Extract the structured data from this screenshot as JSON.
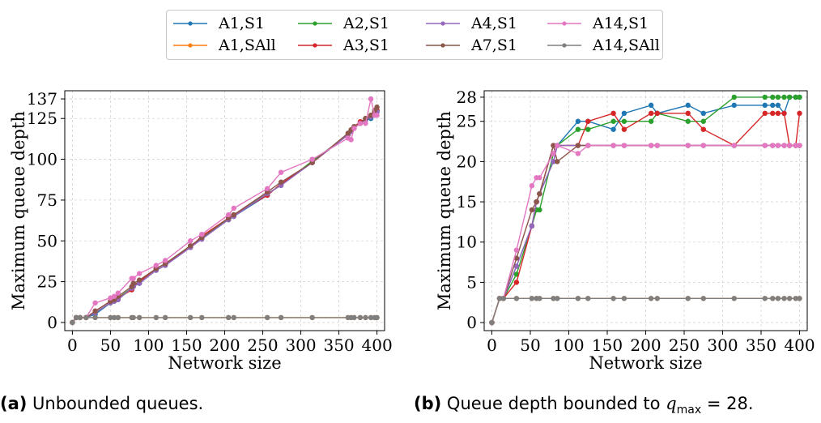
{
  "legend": [
    {
      "name": "A1,S1",
      "color": "#1f77b4"
    },
    {
      "name": "A2,S1",
      "color": "#2ca02c"
    },
    {
      "name": "A4,S1",
      "color": "#9467bd"
    },
    {
      "name": "A14,S1",
      "color": "#e377c2"
    },
    {
      "name": "A1,SAll",
      "color": "#ff7f0e"
    },
    {
      "name": "A3,S1",
      "color": "#d62728"
    },
    {
      "name": "A7,S1",
      "color": "#8c564b"
    },
    {
      "name": "A14,SAll",
      "color": "#7f7f7f"
    }
  ],
  "captions": {
    "a_label": "(a)",
    "a_text": " Unbounded queues.",
    "b_label": "(b)",
    "b_text": " Queue depth bounded to ",
    "b_math": "q",
    "b_sub": "max",
    "b_eq": " = 28."
  },
  "chart_data": [
    {
      "type": "line",
      "title": "",
      "xlabel": "Network size",
      "ylabel": "Maximum queue depth",
      "xlim": [
        -10,
        410
      ],
      "ylim": [
        -5,
        142
      ],
      "xticks": [
        0,
        50,
        100,
        150,
        200,
        250,
        300,
        350,
        400
      ],
      "yticks": [
        0,
        25,
        50,
        75,
        100,
        125,
        137
      ],
      "grid": true,
      "legend_position": "top-center",
      "x": [
        0,
        5,
        10,
        18,
        30,
        50,
        55,
        60,
        78,
        80,
        88,
        110,
        122,
        155,
        170,
        205,
        212,
        256,
        274,
        315,
        362,
        366,
        370,
        378,
        385,
        392,
        397,
        400
      ],
      "series": [
        {
          "name": "A1,S1",
          "color": "#1f77b4",
          "values": [
            0,
            3,
            3,
            3,
            5,
            12,
            13,
            14,
            21,
            22,
            24,
            32,
            35,
            46,
            52,
            63,
            65,
            78,
            85,
            98,
            115,
            117,
            119,
            122,
            124,
            125,
            127,
            129
          ]
        },
        {
          "name": "A2,S1",
          "color": "#2ca02c",
          "values": [
            0,
            3,
            3,
            3,
            6,
            12,
            14,
            15,
            21,
            23,
            25,
            33,
            36,
            47,
            52,
            63,
            66,
            79,
            84,
            99,
            115,
            118,
            120,
            122,
            125,
            126,
            128,
            130
          ]
        },
        {
          "name": "A3,S1",
          "color": "#d62728",
          "values": [
            0,
            3,
            3,
            3,
            7,
            13,
            14,
            15,
            20,
            22,
            25,
            33,
            36,
            46,
            53,
            64,
            66,
            78,
            85,
            98,
            115,
            118,
            120,
            123,
            125,
            127,
            129,
            130
          ]
        },
        {
          "name": "A4,S1",
          "color": "#9467bd",
          "values": [
            0,
            3,
            3,
            3,
            6,
            12,
            13,
            14,
            21,
            22,
            24,
            32,
            35,
            46,
            51,
            63,
            65,
            79,
            84,
            98,
            115,
            117,
            119,
            122,
            124,
            126,
            128,
            129
          ]
        },
        {
          "name": "A7,S1",
          "color": "#8c564b",
          "values": [
            0,
            3,
            3,
            3,
            7,
            13,
            14,
            16,
            22,
            24,
            26,
            33,
            36,
            47,
            52,
            64,
            66,
            80,
            86,
            98,
            116,
            118,
            120,
            122,
            125,
            127,
            130,
            132
          ]
        },
        {
          "name": "A14,S1",
          "color": "#e377c2",
          "values": [
            0,
            3,
            3,
            3,
            12,
            15,
            16,
            18,
            27,
            27,
            30,
            35,
            38,
            50,
            54,
            66,
            70,
            82,
            92,
            100,
            113,
            112,
            119,
            122,
            122,
            137,
            127,
            127
          ]
        },
        {
          "name": "A1,SAll",
          "color": "#ff7f0e",
          "values": [
            0,
            3,
            3,
            3,
            3,
            3,
            3,
            3,
            3,
            3,
            3,
            3,
            3,
            3,
            3,
            3,
            3,
            3,
            3,
            3,
            3,
            3,
            3,
            3,
            3,
            3,
            3,
            3
          ]
        },
        {
          "name": "A14,SAll",
          "color": "#7f7f7f",
          "values": [
            0,
            3,
            3,
            3,
            3,
            3,
            3,
            3,
            3,
            3,
            3,
            3,
            3,
            3,
            3,
            3,
            3,
            3,
            3,
            3,
            3,
            3,
            3,
            3,
            3,
            3,
            3,
            3
          ]
        }
      ]
    },
    {
      "type": "line",
      "title": "",
      "xlabel": "Network size",
      "ylabel": "Maximum queue depth",
      "xlim": [
        -10,
        410
      ],
      "ylim": [
        -1,
        28.8
      ],
      "xticks": [
        0,
        50,
        100,
        150,
        200,
        250,
        300,
        350,
        400
      ],
      "yticks": [
        0,
        5,
        10,
        15,
        20,
        25,
        28
      ],
      "grid": true,
      "legend_position": "top-center",
      "x": [
        0,
        10,
        15,
        32,
        52,
        58,
        62,
        80,
        85,
        112,
        125,
        158,
        172,
        207,
        215,
        255,
        275,
        315,
        355,
        365,
        372,
        380,
        387,
        395,
        400
      ],
      "series": [
        {
          "name": "A1,S1",
          "color": "#1f77b4",
          "values": [
            0,
            3,
            3,
            7,
            12,
            15,
            16,
            20,
            22,
            25,
            25,
            24,
            26,
            27,
            26,
            27,
            26,
            27,
            27,
            27,
            27,
            26,
            28,
            28,
            28
          ]
        },
        {
          "name": "A2,S1",
          "color": "#2ca02c",
          "values": [
            0,
            3,
            3,
            6,
            12,
            14,
            14,
            21,
            22,
            24,
            24,
            25,
            25,
            25,
            26,
            25,
            25,
            28,
            28,
            28,
            28,
            28,
            28,
            28,
            28
          ]
        },
        {
          "name": "A3,S1",
          "color": "#d62728",
          "values": [
            0,
            3,
            3,
            5,
            12,
            15,
            16,
            22,
            22,
            22,
            25,
            26,
            24,
            26,
            26,
            26,
            24,
            22,
            26,
            26,
            26,
            26,
            22,
            22,
            26
          ]
        },
        {
          "name": "A4,S1",
          "color": "#9467bd",
          "values": [
            0,
            3,
            3,
            7,
            12,
            15,
            16,
            20,
            22,
            22,
            22,
            22,
            22,
            22,
            22,
            22,
            22,
            22,
            22,
            22,
            22,
            22,
            22,
            22,
            22
          ]
        },
        {
          "name": "A7,S1",
          "color": "#8c564b",
          "values": [
            0,
            3,
            3,
            8,
            14,
            15,
            16,
            22,
            20,
            22,
            22,
            22,
            22,
            22,
            22,
            22,
            22,
            22,
            22,
            22,
            22,
            22,
            22,
            22,
            22
          ]
        },
        {
          "name": "A14,S1",
          "color": "#e377c2",
          "values": [
            0,
            3,
            3,
            9,
            17,
            18,
            18,
            21,
            22,
            21,
            22,
            22,
            22,
            22,
            22,
            22,
            22,
            22,
            22,
            22,
            22,
            22,
            22,
            22,
            22
          ]
        },
        {
          "name": "A1,SAll",
          "color": "#ff7f0e",
          "values": [
            0,
            3,
            3,
            3,
            3,
            3,
            3,
            3,
            3,
            3,
            3,
            3,
            3,
            3,
            3,
            3,
            3,
            3,
            3,
            3,
            3,
            3,
            3,
            3,
            3
          ]
        },
        {
          "name": "A14,SAll",
          "color": "#7f7f7f",
          "values": [
            0,
            3,
            3,
            3,
            3,
            3,
            3,
            3,
            3,
            3,
            3,
            3,
            3,
            3,
            3,
            3,
            3,
            3,
            3,
            3,
            3,
            3,
            3,
            3,
            3
          ]
        }
      ]
    }
  ]
}
